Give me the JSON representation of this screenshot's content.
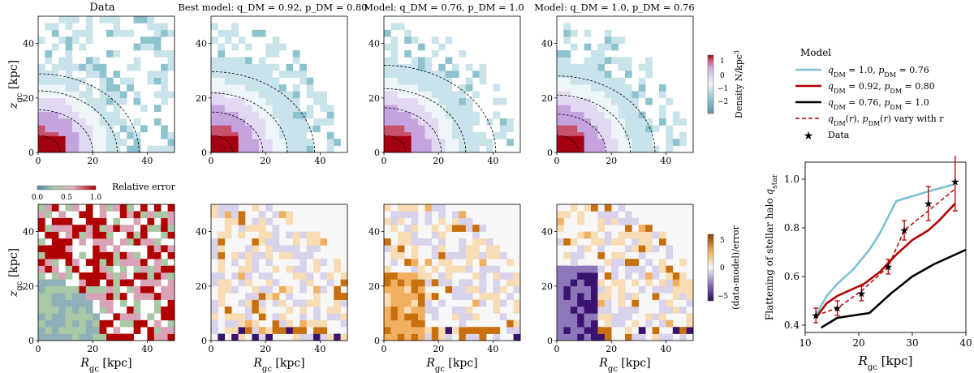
{
  "panels": {
    "top_titles": [
      "Data",
      "Best model: q_DM = 0.92, p_DM = 0.80",
      "Model: q_DM = 0.76, p_DM = 1.0",
      "Model: q_DM = 1.0, p_DM = 0.76"
    ],
    "best_title_color": "#b00000",
    "x_label": "R_gc [kpc]",
    "y_label": "z_gc [kpc]",
    "x_ticks": [
      0,
      20,
      40
    ],
    "y_ticks": [
      0,
      20,
      40
    ],
    "range_kpc": [
      0,
      50
    ],
    "density_colorbar": {
      "label": "Density N/kpc^3",
      "ticks": [
        1,
        0,
        -1,
        -2
      ],
      "range": [
        -2.6,
        1.3
      ]
    },
    "error_colorbar": {
      "label": "(data-model)/error",
      "ticks": [
        5,
        0,
        -5
      ],
      "range": [
        -6,
        6
      ]
    },
    "relative_error_colorbar": {
      "label": "Relative error",
      "ticks": [
        "0.0",
        "0.5",
        "1.0"
      ],
      "range": [
        0,
        1
      ]
    },
    "contour_radii_kpc": {
      "data": [
        8,
        20,
        29,
        37
      ],
      "best": [
        8,
        19,
        28,
        38
      ],
      "model_q076": [
        8,
        21,
        30,
        41
      ],
      "model_q100": [
        8,
        18,
        27,
        36
      ]
    }
  },
  "chart_data": {
    "type": "line",
    "title": "",
    "xlabel": "R_gc [kpc]",
    "ylabel": "Flattening of stellar halo q_star",
    "xlim": [
      10,
      40
    ],
    "ylim": [
      0.37,
      1.07
    ],
    "x_ticks": [
      10,
      20,
      30,
      40
    ],
    "y_ticks": [
      0.4,
      0.6,
      0.8,
      1.0
    ],
    "legend_title": "Model",
    "legend_position": "top-right (outside, above plot)",
    "series": [
      {
        "name": "q_DM = 1.0,  p_DM = 0.76",
        "color": "#7ec0d4",
        "style": "solid",
        "x": [
          12,
          14,
          16,
          19,
          22,
          24,
          27,
          30,
          33,
          38
        ],
        "y": [
          0.44,
          0.52,
          0.57,
          0.63,
          0.71,
          0.78,
          0.91,
          0.93,
          0.95,
          0.98
        ]
      },
      {
        "name": "q_DM = 0.92, p_DM = 0.80",
        "color": "#b00000",
        "style": "solid",
        "x": [
          12,
          14,
          16,
          18,
          21,
          24,
          27,
          30,
          33,
          35,
          38
        ],
        "y": [
          0.43,
          0.49,
          0.52,
          0.54,
          0.57,
          0.62,
          0.69,
          0.75,
          0.79,
          0.83,
          0.9
        ]
      },
      {
        "name": "q_DM = 0.76, p_DM = 1.0",
        "color": "#000000",
        "style": "solid",
        "x": [
          13,
          16,
          19,
          22,
          26,
          30,
          34,
          38,
          40
        ],
        "y": [
          0.39,
          0.43,
          0.44,
          0.45,
          0.53,
          0.6,
          0.65,
          0.69,
          0.71
        ]
      },
      {
        "name": "q_DM(r), p_DM(r) vary with r",
        "color": "#b00000",
        "style": "dashed",
        "x": [
          12,
          16,
          20.5,
          25.5,
          28.5,
          33,
          38
        ],
        "y": [
          0.44,
          0.47,
          0.54,
          0.64,
          0.79,
          0.87,
          0.96
        ]
      },
      {
        "name": "Data",
        "color": "#b00000",
        "style": "star",
        "x": [
          12,
          16,
          20.5,
          25.5,
          28.5,
          33,
          38
        ],
        "y": [
          0.44,
          0.47,
          0.53,
          0.64,
          0.79,
          0.9,
          0.99
        ],
        "err": [
          0.03,
          0.03,
          0.03,
          0.03,
          0.04,
          0.07,
          0.12
        ]
      }
    ]
  }
}
